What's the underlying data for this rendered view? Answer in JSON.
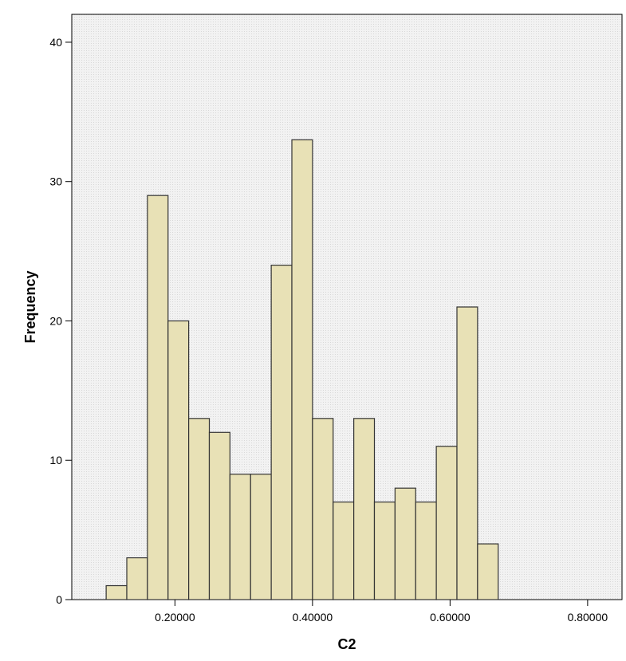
{
  "chart_data": {
    "type": "bar",
    "subtype": "histogram",
    "title": "",
    "xlabel": "C2",
    "ylabel": "Frequency",
    "xlim": [
      0.05,
      0.85
    ],
    "ylim": [
      0,
      42
    ],
    "bin_width": 0.03,
    "bins": [
      {
        "start": 0.1,
        "end": 0.13,
        "count": 1
      },
      {
        "start": 0.13,
        "end": 0.16,
        "count": 3
      },
      {
        "start": 0.16,
        "end": 0.19,
        "count": 29
      },
      {
        "start": 0.19,
        "end": 0.22,
        "count": 20
      },
      {
        "start": 0.22,
        "end": 0.25,
        "count": 13
      },
      {
        "start": 0.25,
        "end": 0.28,
        "count": 12
      },
      {
        "start": 0.28,
        "end": 0.31,
        "count": 9
      },
      {
        "start": 0.31,
        "end": 0.34,
        "count": 9
      },
      {
        "start": 0.34,
        "end": 0.37,
        "count": 24
      },
      {
        "start": 0.37,
        "end": 0.4,
        "count": 33
      },
      {
        "start": 0.4,
        "end": 0.43,
        "count": 13
      },
      {
        "start": 0.43,
        "end": 0.46,
        "count": 7
      },
      {
        "start": 0.46,
        "end": 0.49,
        "count": 13
      },
      {
        "start": 0.49,
        "end": 0.52,
        "count": 7
      },
      {
        "start": 0.52,
        "end": 0.55,
        "count": 8
      },
      {
        "start": 0.55,
        "end": 0.58,
        "count": 7
      },
      {
        "start": 0.58,
        "end": 0.61,
        "count": 11
      },
      {
        "start": 0.61,
        "end": 0.64,
        "count": 21
      },
      {
        "start": 0.64,
        "end": 0.67,
        "count": 4
      }
    ],
    "x_ticks": [
      {
        "value": 0.2,
        "label": "0.20000"
      },
      {
        "value": 0.4,
        "label": "0.40000"
      },
      {
        "value": 0.6,
        "label": "0.60000"
      },
      {
        "value": 0.8,
        "label": "0.80000"
      }
    ],
    "y_ticks": [
      {
        "value": 0,
        "label": "0"
      },
      {
        "value": 10,
        "label": "10"
      },
      {
        "value": 20,
        "label": "20"
      },
      {
        "value": 30,
        "label": "30"
      },
      {
        "value": 40,
        "label": "40"
      }
    ],
    "grid": false,
    "legend": "none",
    "colors": {
      "bar_fill": "#e8e1b6",
      "bar_stroke": "#333333",
      "plot_background": "#f0f0f0",
      "axis": "#000000"
    }
  }
}
